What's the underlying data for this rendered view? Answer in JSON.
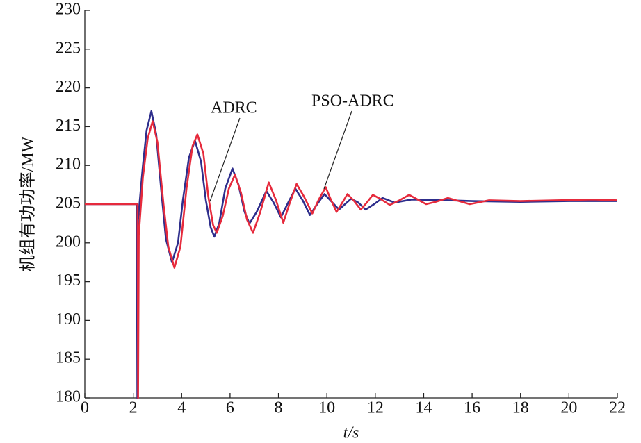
{
  "chart_data": {
    "type": "line",
    "x_label": "t/s",
    "y_label": "机组有功功率/MW",
    "xlim": [
      0,
      22
    ],
    "ylim": [
      180,
      230
    ],
    "xticks": [
      0,
      2,
      4,
      6,
      8,
      10,
      12,
      14,
      16,
      18,
      20,
      22
    ],
    "yticks": [
      180,
      185,
      190,
      195,
      200,
      205,
      210,
      215,
      220,
      225,
      230
    ],
    "annotations": [
      "ADRC",
      "PSO-ADRC"
    ],
    "series": [
      {
        "name": "ADRC",
        "color": "#2e2e8c",
        "x": [
          0,
          2.15,
          2.17,
          2.2,
          2.4,
          2.55,
          2.75,
          2.95,
          3.15,
          3.35,
          3.6,
          3.85,
          4.05,
          4.3,
          4.55,
          4.8,
          5.0,
          5.2,
          5.35,
          5.55,
          5.8,
          6.1,
          6.35,
          6.6,
          6.8,
          7.1,
          7.5,
          7.8,
          8.1,
          8.4,
          8.7,
          9.0,
          9.3,
          9.6,
          9.9,
          10.2,
          10.5,
          10.75,
          11.0,
          11.3,
          11.6,
          11.95,
          12.3,
          12.8,
          13.5,
          15,
          16,
          18,
          20,
          22
        ],
        "values": [
          205,
          205,
          180,
          203,
          210,
          214.5,
          217,
          214,
          207,
          200.5,
          197.5,
          200,
          205.5,
          211,
          213.2,
          210.5,
          205.5,
          202,
          200.8,
          202.5,
          207,
          209.6,
          207.5,
          204,
          202.5,
          204,
          206.7,
          205.2,
          203.3,
          205.2,
          207,
          205.5,
          203.6,
          205,
          206.3,
          205.3,
          204.3,
          205,
          205.7,
          205.2,
          204.3,
          205,
          205.8,
          205.2,
          205.6,
          205.5,
          205.4,
          205.3,
          205.4,
          205.4
        ]
      },
      {
        "name": "PSO-ADRC",
        "color": "#e62a3c",
        "x": [
          0,
          2.18,
          2.2,
          2.23,
          2.4,
          2.6,
          2.8,
          3.0,
          3.25,
          3.45,
          3.7,
          3.95,
          4.2,
          4.45,
          4.65,
          4.9,
          5.1,
          5.3,
          5.45,
          5.7,
          5.95,
          6.2,
          6.45,
          6.7,
          6.95,
          7.25,
          7.6,
          7.9,
          8.2,
          8.45,
          8.75,
          9.05,
          9.4,
          9.65,
          9.95,
          10.15,
          10.4,
          10.6,
          10.85,
          11.1,
          11.4,
          11.65,
          11.9,
          12.2,
          12.6,
          13.0,
          13.4,
          13.75,
          14.1,
          14.5,
          15.0,
          15.45,
          15.9,
          16.7,
          18,
          21,
          22
        ],
        "values": [
          205,
          205,
          180,
          201,
          208.5,
          213.5,
          215.7,
          213,
          205,
          199.5,
          196.8,
          199.5,
          207,
          212.5,
          214,
          211.5,
          206,
          202.3,
          201.3,
          203.5,
          207,
          208.8,
          206.5,
          203,
          201.3,
          204,
          207.8,
          205.5,
          202.6,
          205,
          207.6,
          206,
          203.8,
          205.5,
          207.2,
          205.7,
          204,
          205,
          206.3,
          205.5,
          204.3,
          205.2,
          206.2,
          205.7,
          204.9,
          205.5,
          206.2,
          205.6,
          205,
          205.3,
          205.8,
          205.4,
          205,
          205.5,
          205.4,
          205.6,
          205.5
        ]
      }
    ]
  }
}
